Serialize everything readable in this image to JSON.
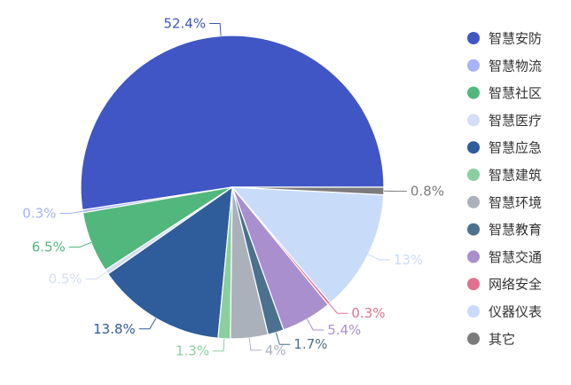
{
  "chart_data": {
    "type": "pie",
    "title": "",
    "legend_position": "right",
    "slices": [
      {
        "name": "智慧安防",
        "value": 52.4,
        "label": "52.4%",
        "color": "#3f56c4"
      },
      {
        "name": "智慧物流",
        "value": 0.3,
        "label": "0.3%",
        "color": "#a4b4f4"
      },
      {
        "name": "智慧社区",
        "value": 6.5,
        "label": "6.5%",
        "color": "#52b77d"
      },
      {
        "name": "智慧医疗",
        "value": 0.5,
        "label": "0.5%",
        "color": "#d3ddf5"
      },
      {
        "name": "智慧应急",
        "value": 13.8,
        "label": "13.8%",
        "color": "#2f5c9b"
      },
      {
        "name": "智慧建筑",
        "value": 1.3,
        "label": "1.3%",
        "color": "#8bcf9f"
      },
      {
        "name": "智慧环境",
        "value": 4,
        "label": "4%",
        "color": "#abb1bb"
      },
      {
        "name": "智慧教育",
        "value": 1.7,
        "label": "1.7%",
        "color": "#4b718e"
      },
      {
        "name": "智慧交通",
        "value": 5.4,
        "label": "5.4%",
        "color": "#a98fce"
      },
      {
        "name": "网络安全",
        "value": 0.3,
        "label": "0.3%",
        "color": "#e0708e"
      },
      {
        "name": "仪器仪表",
        "value": 13,
        "label": "13%",
        "color": "#c8dcfa"
      },
      {
        "name": "其它",
        "value": 0.8,
        "label": "0.8%",
        "color": "#7b7b7b"
      }
    ]
  }
}
